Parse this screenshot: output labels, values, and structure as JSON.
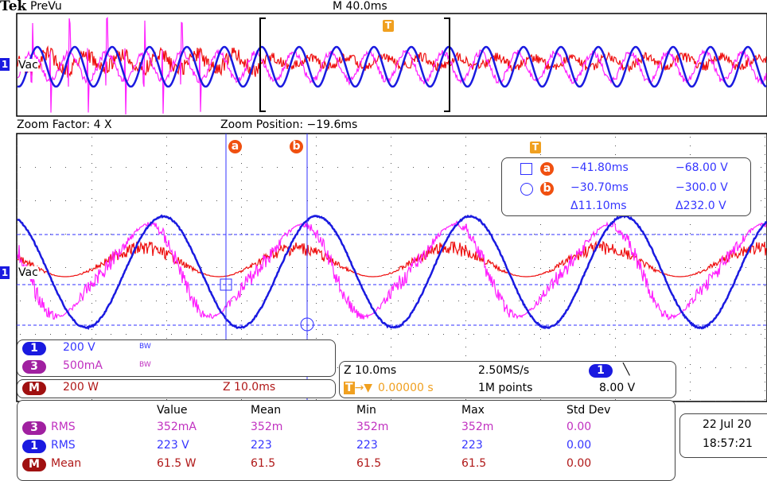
{
  "header": {
    "brand": "Tek",
    "mode": "PreVu",
    "timebase": "M 40.0ms"
  },
  "zoom": {
    "factor": "Zoom Factor: 4 X",
    "position": "Zoom Position: −19.6ms"
  },
  "markers": {
    "trigger": "T",
    "ch1_label": "Vac",
    "ch1_num": "1",
    "cursor_a": "a",
    "cursor_b": "b"
  },
  "cursors": {
    "a_time": "−41.80ms",
    "a_value": "−68.00 V",
    "b_time": "−30.70ms",
    "b_value": "−300.0 V",
    "delta_time": "Δ11.10ms",
    "delta_value": "Δ232.0 V"
  },
  "channels": [
    {
      "num": "1",
      "scale": "200 V",
      "bw": "BW",
      "color": "#1a1aee"
    },
    {
      "num": "3",
      "scale": "500mA",
      "bw": "BW",
      "color": "#a020a0"
    }
  ],
  "math": {
    "num": "M",
    "scale": "200 W",
    "zoom": "Z 10.0ms",
    "color": "#a01010"
  },
  "timebase": {
    "zoom": "Z 10.0ms",
    "sample_rate": "2.50MS/s",
    "trigger_pos": "0.00000 s",
    "record": "1M points",
    "trig_ch": "1",
    "trig_slope": "╲",
    "trig_level": "8.00 V"
  },
  "measurements": {
    "headers": [
      "Value",
      "Mean",
      "Min",
      "Max",
      "Std Dev"
    ],
    "rows": [
      {
        "ch": "3",
        "type": "RMS",
        "cells": [
          "352mA",
          "352m",
          "352m",
          "352m",
          "0.00"
        ]
      },
      {
        "ch": "1",
        "type": "RMS",
        "cells": [
          "223 V",
          "223",
          "223",
          "223",
          "0.00"
        ]
      },
      {
        "ch": "M",
        "type": "Mean",
        "cells": [
          "61.5 W",
          "61.5",
          "61.5",
          "61.5",
          "0.00"
        ]
      }
    ]
  },
  "datetime": {
    "date": "22 Jul  20",
    "time": "18:57:21"
  }
}
